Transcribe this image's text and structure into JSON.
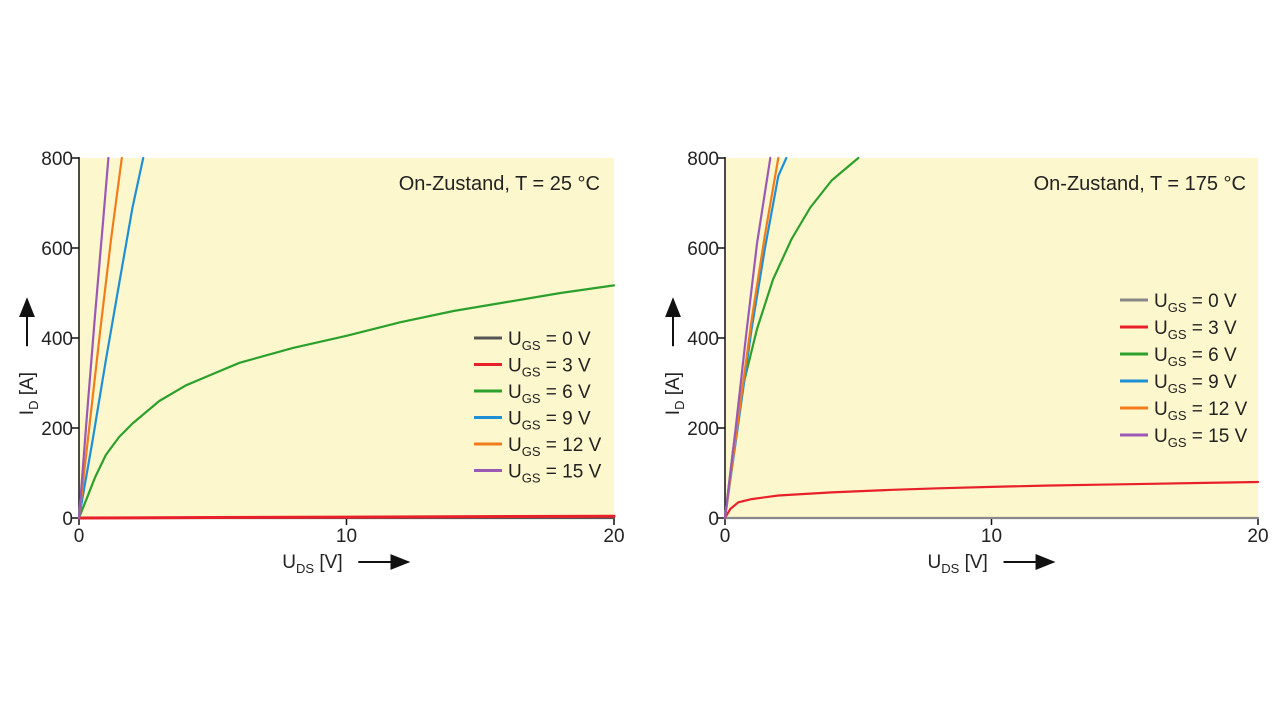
{
  "chart_data": [
    {
      "type": "line",
      "annotation": "On-Zustand, T = 25 °C",
      "xlabel": {
        "main": "U",
        "sub": "DS",
        "unit": " [V]"
      },
      "ylabel": {
        "main": "I",
        "sub": "D",
        "unit": " [A]"
      },
      "xlim": [
        0,
        20
      ],
      "ylim": [
        0,
        800
      ],
      "xticks": [
        "0",
        "10",
        "20"
      ],
      "yticks": [
        "0",
        "200",
        "400",
        "600",
        "800"
      ],
      "legend": "right-middle",
      "series": [
        {
          "name": {
            "main": "U",
            "sub": "GS",
            "rest": " = 0 V"
          },
          "color": "#555555",
          "x": [
            0,
            20
          ],
          "y": [
            0,
            0
          ]
        },
        {
          "name": {
            "main": "U",
            "sub": "GS",
            "rest": " = 3 V"
          },
          "color": "#e8202a",
          "x": [
            0,
            5,
            10,
            15,
            20
          ],
          "y": [
            0,
            1,
            2,
            3,
            4
          ]
        },
        {
          "name": {
            "main": "U",
            "sub": "GS",
            "rest": " = 6 V"
          },
          "color": "#2ca02c",
          "x": [
            0,
            0.3,
            0.6,
            1,
            1.5,
            2,
            3,
            4,
            5,
            6,
            8,
            10,
            12,
            14,
            16,
            18,
            20
          ],
          "y": [
            0,
            45,
            90,
            140,
            180,
            210,
            260,
            295,
            320,
            345,
            378,
            405,
            435,
            460,
            480,
            500,
            517
          ]
        },
        {
          "name": {
            "main": "U",
            "sub": "GS",
            "rest": " = 9 V"
          },
          "color": "#1f8fd6",
          "x": [
            0,
            0.5,
            1.0,
            1.5,
            2.0,
            2.4
          ],
          "y": [
            0,
            170,
            350,
            520,
            690,
            800
          ]
        },
        {
          "name": {
            "main": "U",
            "sub": "GS",
            "rest": " = 12 V"
          },
          "color": "#f07d1a",
          "x": [
            0,
            0.4,
            0.8,
            1.2,
            1.6
          ],
          "y": [
            0,
            210,
            420,
            620,
            800
          ]
        },
        {
          "name": {
            "main": "U",
            "sub": "GS",
            "rest": " = 15 V"
          },
          "color": "#9b59b6",
          "x": [
            0,
            0.3,
            0.6,
            0.9,
            1.1
          ],
          "y": [
            0,
            230,
            450,
            660,
            800
          ]
        }
      ]
    },
    {
      "type": "line",
      "annotation": "On-Zustand, T = 175 °C",
      "xlabel": {
        "main": "U",
        "sub": "DS",
        "unit": " [V]"
      },
      "ylabel": {
        "main": "I",
        "sub": "D",
        "unit": " [A]"
      },
      "xlim": [
        0,
        20
      ],
      "ylim": [
        0,
        800
      ],
      "xticks": [
        "0",
        "10",
        "20"
      ],
      "yticks": [
        "0",
        "200",
        "400",
        "600",
        "800"
      ],
      "legend": "right-middle",
      "series": [
        {
          "name": {
            "main": "U",
            "sub": "GS",
            "rest": " = 0 V"
          },
          "color": "#888888",
          "x": [
            0,
            20
          ],
          "y": [
            0,
            0
          ]
        },
        {
          "name": {
            "main": "U",
            "sub": "GS",
            "rest": " = 3 V"
          },
          "color": "#e8202a",
          "x": [
            0,
            0.2,
            0.5,
            1,
            2,
            4,
            6,
            8,
            10,
            12,
            14,
            16,
            18,
            20
          ],
          "y": [
            0,
            20,
            35,
            42,
            50,
            57,
            62,
            66,
            69,
            72,
            74,
            76,
            78,
            80
          ]
        },
        {
          "name": {
            "main": "U",
            "sub": "GS",
            "rest": " = 6 V"
          },
          "color": "#2ca02c",
          "x": [
            0,
            0.3,
            0.7,
            1.2,
            1.8,
            2.5,
            3.2,
            4.0,
            5.0
          ],
          "y": [
            0,
            150,
            300,
            420,
            530,
            620,
            690,
            750,
            800
          ]
        },
        {
          "name": {
            "main": "U",
            "sub": "GS",
            "rest": " = 9 V"
          },
          "color": "#1f8fd6",
          "x": [
            0,
            0.5,
            1.0,
            1.5,
            2.0,
            2.3
          ],
          "y": [
            0,
            210,
            420,
            600,
            760,
            800
          ]
        },
        {
          "name": {
            "main": "U",
            "sub": "GS",
            "rest": " = 12 V"
          },
          "color": "#f07d1a",
          "x": [
            0,
            0.5,
            1.0,
            1.5,
            2.0
          ],
          "y": [
            0,
            220,
            440,
            630,
            800
          ]
        },
        {
          "name": {
            "main": "U",
            "sub": "GS",
            "rest": " = 15 V"
          },
          "color": "#9b59b6",
          "x": [
            0,
            0.4,
            0.8,
            1.2,
            1.7
          ],
          "y": [
            0,
            200,
            410,
            610,
            800
          ]
        }
      ]
    }
  ]
}
